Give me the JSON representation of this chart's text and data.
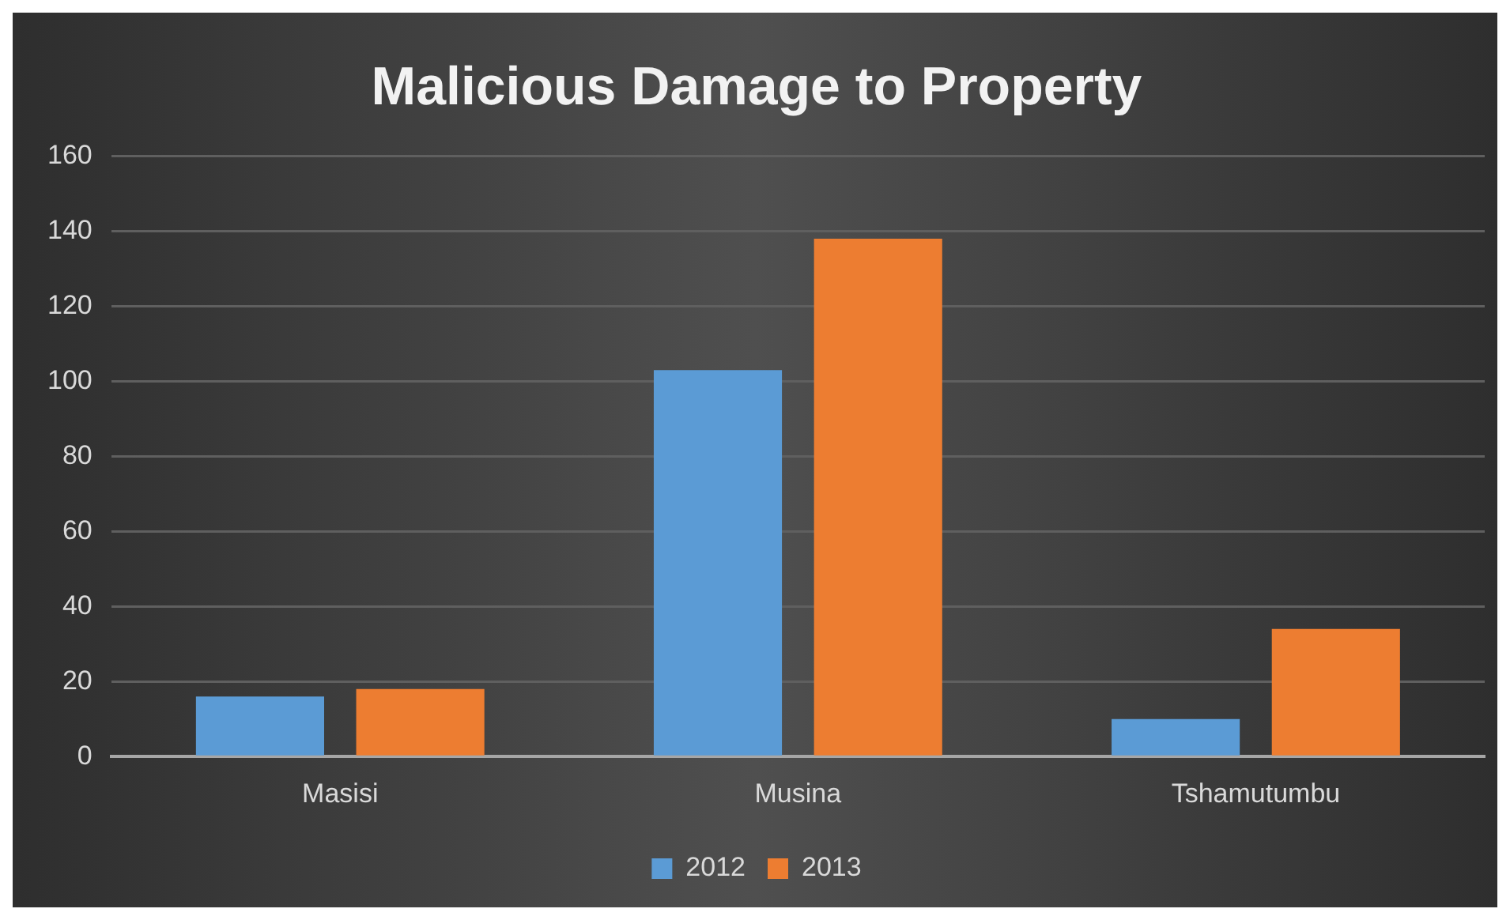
{
  "chart_data": {
    "type": "bar",
    "title": "Malicious Damage to Property",
    "categories": [
      "Masisi",
      "Musina",
      "Tshamutumbu"
    ],
    "series": [
      {
        "name": "2012",
        "color": "#5b9bd5",
        "values": [
          16,
          103,
          10
        ]
      },
      {
        "name": "2013",
        "color": "#ed7d31",
        "values": [
          18,
          138,
          34
        ]
      }
    ],
    "ylim": [
      0,
      160
    ],
    "yticks": [
      0,
      20,
      40,
      60,
      80,
      100,
      120,
      140,
      160
    ],
    "grid": "y",
    "legend": "bottom"
  }
}
